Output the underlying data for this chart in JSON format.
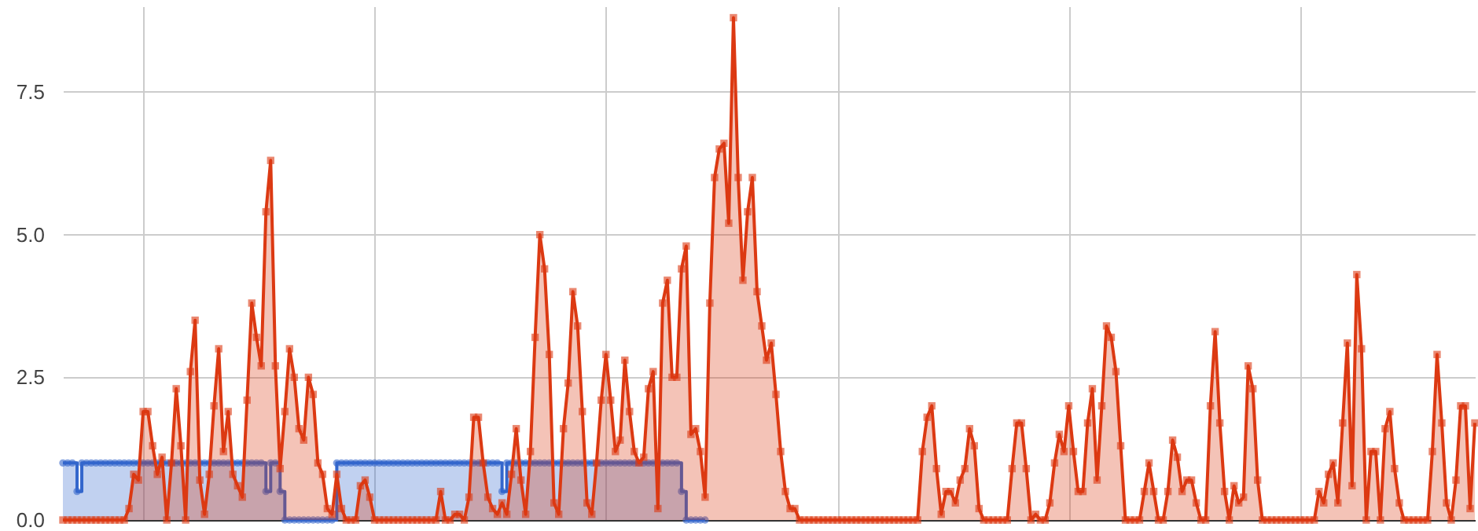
{
  "chart_data": {
    "type": "area",
    "categories": [
      null,
      null,
      null,
      null,
      null,
      null,
      null,
      null,
      null,
      null,
      null,
      null,
      null,
      null,
      null,
      null,
      null,
      null,
      null,
      null,
      null,
      null,
      null,
      null,
      null,
      null,
      null,
      null,
      null,
      null,
      null,
      null,
      null,
      null,
      null,
      null,
      null,
      null,
      null,
      null,
      null,
      null,
      null,
      null,
      null,
      null,
      null,
      null,
      null,
      null,
      null,
      null,
      null,
      null,
      null,
      null,
      null,
      null,
      null,
      null,
      null,
      null,
      null,
      null,
      null,
      null,
      null,
      null,
      null,
      null,
      null,
      null,
      null,
      null,
      null,
      null,
      null,
      null,
      null,
      null,
      null,
      null,
      null,
      null,
      null,
      null,
      null,
      null,
      null,
      null,
      null,
      null,
      null,
      null,
      null,
      null,
      null,
      null,
      null,
      null,
      null,
      null,
      null,
      null,
      null,
      null,
      null,
      null,
      null,
      null,
      null,
      null,
      null,
      null,
      null,
      null,
      null,
      null,
      null,
      null,
      null,
      null,
      null,
      null,
      null,
      null,
      null,
      null,
      null,
      null,
      null,
      null,
      null,
      null,
      null,
      null,
      null,
      null,
      null,
      null,
      null,
      null,
      null,
      null,
      null,
      null,
      null,
      null,
      null,
      null,
      null,
      null,
      null,
      null,
      null,
      null,
      null,
      null,
      null,
      null,
      null,
      null,
      null,
      null,
      null,
      null,
      null,
      null,
      null,
      null,
      null,
      null,
      null,
      null,
      null,
      null,
      null,
      null,
      null,
      null,
      null,
      null,
      null,
      null,
      null,
      null,
      null,
      null,
      null,
      null,
      null,
      null,
      null,
      null,
      null,
      null,
      null,
      null,
      null,
      null,
      null,
      null,
      null,
      null,
      null,
      null,
      null,
      null,
      null,
      null,
      null,
      null,
      null,
      null,
      null,
      null,
      null,
      null,
      null,
      null,
      null,
      null,
      null,
      null,
      null,
      null,
      null,
      null,
      null,
      null,
      null,
      null,
      null,
      null,
      null,
      null,
      null,
      null,
      null,
      null,
      null,
      null,
      null,
      null,
      null,
      null,
      null,
      null,
      null,
      null,
      null,
      null,
      null,
      null,
      null,
      null,
      null,
      null,
      null,
      null,
      null,
      null,
      null,
      null,
      null,
      null,
      null,
      null,
      null,
      null,
      null,
      null,
      null,
      null,
      null,
      null,
      null,
      null,
      null,
      null,
      null,
      null,
      null,
      null,
      null,
      null,
      null,
      null,
      null,
      null,
      null,
      null,
      null,
      null,
      null,
      null,
      null,
      null,
      null,
      null
    ],
    "ylim": [
      0,
      9
    ],
    "yticks": [
      {
        "value": 0,
        "label": "0.0"
      },
      {
        "value": 2.5,
        "label": "2.5"
      },
      {
        "value": 5,
        "label": "5.0"
      },
      {
        "value": 7.5,
        "label": "7.5"
      }
    ],
    "grid": true,
    "tick_labels": "y",
    "series": [
      {
        "type": "step",
        "marker": "circle",
        "color": "#3366cc",
        "values": [
          1,
          1,
          1,
          0.5,
          1,
          1,
          1,
          1,
          1,
          1,
          1,
          1,
          1,
          1,
          1,
          1,
          1,
          1,
          1,
          1,
          1,
          1,
          1,
          1,
          1,
          1,
          1,
          1,
          1,
          1,
          1,
          1,
          1,
          1,
          1,
          1,
          1,
          1,
          1,
          1,
          1,
          1,
          1,
          0.5,
          1,
          1,
          0.5,
          0,
          0,
          0,
          0,
          0,
          0,
          0,
          0,
          0,
          0,
          0,
          1,
          1,
          1,
          1,
          1,
          1,
          1,
          1,
          1,
          1,
          1,
          1,
          1,
          1,
          1,
          1,
          1,
          1,
          1,
          1,
          1,
          1,
          1,
          1,
          1,
          1,
          1,
          1,
          1,
          1,
          1,
          1,
          1,
          1,
          1,
          0.5,
          1,
          1,
          1,
          1,
          1,
          1,
          1,
          1,
          1,
          1,
          1,
          1,
          1,
          1,
          1,
          1,
          1,
          1,
          1,
          1,
          1,
          1,
          1,
          1,
          1,
          1,
          1,
          1,
          1,
          1,
          1,
          1,
          1,
          1,
          1,
          1,
          1,
          0.5,
          0,
          0,
          0,
          0,
          0,
          null,
          null,
          null,
          null,
          null,
          null,
          null,
          null,
          null,
          null,
          null,
          null,
          null,
          null,
          null,
          null,
          null,
          null,
          null,
          null,
          null,
          null,
          null,
          null,
          null,
          null,
          null,
          null,
          null,
          null,
          null,
          null,
          null,
          null,
          null,
          null,
          null,
          null,
          null,
          null,
          null,
          null,
          null,
          null,
          null,
          null,
          null,
          null,
          null,
          null,
          null,
          null,
          null,
          null,
          null,
          null,
          null,
          null,
          null,
          null,
          null,
          null,
          null,
          null,
          null,
          null,
          null,
          null,
          null,
          null,
          null,
          null,
          null,
          null,
          null,
          null,
          null,
          null,
          null,
          null,
          null,
          null,
          null,
          null,
          null,
          null,
          null,
          null,
          null,
          null,
          null,
          null,
          null,
          null,
          null,
          null,
          null,
          null,
          null,
          null,
          null,
          null,
          null,
          null,
          null,
          null,
          null,
          null,
          null,
          null,
          null,
          null,
          null,
          null,
          null,
          null,
          null,
          null,
          null,
          null,
          null,
          null,
          null,
          null,
          null,
          null,
          null,
          null,
          null,
          null,
          null,
          null,
          null,
          null,
          null,
          null,
          null,
          null,
          null,
          null,
          null,
          null,
          null,
          null,
          null,
          null,
          null,
          null,
          null,
          null,
          null,
          null,
          null,
          null,
          null,
          null,
          null,
          null,
          null,
          null,
          null,
          null,
          null
        ]
      },
      {
        "type": "area",
        "marker": "square",
        "color": "#dc3912",
        "values": [
          0,
          0,
          0,
          0,
          0,
          0,
          0,
          0,
          0,
          0,
          0,
          0,
          0,
          0,
          0.2,
          0.8,
          0.7,
          1.9,
          1.9,
          1.3,
          0.8,
          1.1,
          0,
          1.0,
          2.3,
          1.3,
          0,
          2.6,
          3.5,
          0.7,
          0.1,
          0.8,
          2.0,
          3.0,
          1.2,
          1.9,
          0.8,
          0.6,
          0.4,
          2.1,
          3.8,
          3.2,
          2.7,
          5.4,
          6.3,
          2.7,
          0.9,
          1.9,
          3.0,
          2.5,
          1.6,
          1.4,
          2.5,
          2.2,
          1.0,
          0.8,
          0.2,
          0.1,
          0.8,
          0.2,
          0,
          0,
          0,
          0.6,
          0.7,
          0.4,
          0,
          0,
          0,
          0,
          0,
          0,
          0,
          0,
          0,
          0,
          0,
          0,
          0,
          0,
          0.5,
          0,
          0,
          0.1,
          0.1,
          0,
          0.4,
          1.8,
          1.8,
          1.0,
          0.4,
          0.2,
          0.1,
          0.3,
          0.1,
          0.8,
          1.6,
          0.7,
          0.1,
          1.2,
          3.2,
          5.0,
          4.4,
          2.9,
          0.3,
          0.1,
          1.6,
          2.4,
          4.0,
          3.4,
          1.9,
          0.3,
          0.1,
          1.0,
          2.1,
          2.9,
          2.1,
          1.2,
          1.4,
          2.8,
          1.9,
          1.2,
          1.0,
          1.1,
          2.3,
          2.6,
          0.2,
          3.8,
          4.2,
          2.5,
          2.5,
          4.4,
          4.8,
          1.5,
          1.6,
          1.2,
          0.4,
          3.8,
          6.0,
          6.5,
          6.6,
          5.2,
          8.8,
          6.0,
          4.2,
          5.4,
          6.0,
          4.0,
          3.4,
          2.8,
          3.1,
          2.2,
          1.2,
          0.5,
          0.2,
          0.2,
          0,
          0,
          0,
          0,
          0,
          0,
          0,
          0,
          0,
          0,
          0,
          0,
          0,
          0,
          0,
          0,
          0,
          0,
          0,
          0,
          0,
          0,
          0,
          0,
          0,
          0,
          1.2,
          1.8,
          2.0,
          0.9,
          0.1,
          0.5,
          0.5,
          0.3,
          0.7,
          0.9,
          1.6,
          1.3,
          0.2,
          0,
          0,
          0,
          0,
          0,
          0,
          0.9,
          1.7,
          1.7,
          0.9,
          0,
          0.1,
          0,
          0,
          0.3,
          1.0,
          1.5,
          1.2,
          2.0,
          1.2,
          0.5,
          0.5,
          1.7,
          2.3,
          0.7,
          2.0,
          3.4,
          3.2,
          2.6,
          1.3,
          0,
          0,
          0,
          0,
          0.5,
          1.0,
          0.5,
          0,
          0,
          0.5,
          1.4,
          1.1,
          0.5,
          0.7,
          0.7,
          0.3,
          0,
          0,
          2.0,
          3.3,
          1.7,
          0.5,
          0,
          0.6,
          0.3,
          0.4,
          2.7,
          2.3,
          0.7,
          0,
          0,
          0,
          0,
          0,
          0,
          0,
          0,
          0,
          0,
          0,
          0,
          0.5,
          0.3,
          0.8,
          1.0,
          0.3,
          1.7,
          3.1,
          0.6,
          4.3,
          3.0,
          0,
          1.2,
          1.2,
          0,
          1.6,
          1.9,
          0.9,
          0.3,
          0,
          0,
          0,
          0,
          0,
          0,
          1.2,
          2.9,
          1.7,
          0.3,
          0,
          0.7,
          2.0,
          2.0,
          0.2,
          1.7
        ]
      }
    ]
  }
}
